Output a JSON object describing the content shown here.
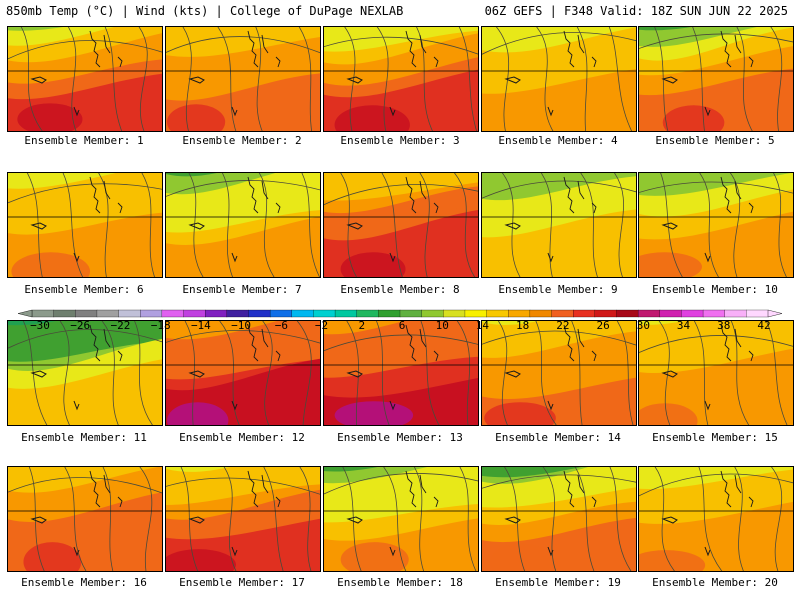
{
  "header": {
    "left": "850mb Temp (°C) | Wind (kts) | College of DuPage NEXLAB",
    "right": "06Z GEFS | F348 Valid: 18Z SUN JUN 22 2025"
  },
  "member_prefix": "Ensemble Member: ",
  "members": [
    {
      "number": "1",
      "north": 9,
      "south": 26
    },
    {
      "number": "2",
      "north": 16,
      "south": 24
    },
    {
      "number": "3",
      "north": 9,
      "south": 27
    },
    {
      "number": "4",
      "north": 14,
      "south": 20
    },
    {
      "number": "5",
      "north": 5,
      "south": 24
    },
    {
      "number": "6",
      "north": 11,
      "south": 22
    },
    {
      "number": "7",
      "north": 7,
      "south": 20
    },
    {
      "number": "8",
      "north": 13,
      "south": 27
    },
    {
      "number": "9",
      "north": 11,
      "south": 17
    },
    {
      "number": "10",
      "north": 7,
      "south": 21
    },
    {
      "number": "11",
      "north": 2,
      "south": 17
    },
    {
      "number": "12",
      "north": 17,
      "south": 29
    },
    {
      "number": "13",
      "north": 17,
      "south": 29
    },
    {
      "number": "14",
      "north": 13,
      "south": 24
    },
    {
      "number": "15",
      "north": 15,
      "south": 21
    },
    {
      "number": "16",
      "north": 15,
      "south": 25
    },
    {
      "number": "17",
      "north": 11,
      "south": 26
    },
    {
      "number": "18",
      "north": 6,
      "south": 21
    },
    {
      "number": "19",
      "north": 6,
      "south": 23
    },
    {
      "number": "20",
      "north": 13,
      "south": 22
    }
  ],
  "colorbar": {
    "labels": [
      "−30",
      "−26",
      "−22",
      "−18",
      "−14",
      "−10",
      "−6",
      "−2",
      "2",
      "6",
      "10",
      "14",
      "18",
      "22",
      "26",
      "30",
      "34",
      "38",
      "42"
    ],
    "colors": [
      "#8b9a8b",
      "#6e7f6e",
      "#808080",
      "#a0a0a0",
      "#c0c0d8",
      "#b0a0e0",
      "#e060f0",
      "#c040e0",
      "#8020c0",
      "#4020a0",
      "#2030c8",
      "#1070e8",
      "#00b8f0",
      "#00d0d0",
      "#00c8a0",
      "#20b860",
      "#30a030",
      "#60b040",
      "#90c830",
      "#d8e020",
      "#f8f000",
      "#f8c800",
      "#f8a800",
      "#f08800",
      "#f06020",
      "#e83020",
      "#d01818",
      "#a80818",
      "#c01870",
      "#d020b0",
      "#e040e0",
      "#f070f0",
      "#f8b0f8",
      "#ffd8ff"
    ]
  },
  "colors": {
    "contour": "#4a4a3a",
    "coast": "#1a1a1a",
    "border": "#000000"
  }
}
